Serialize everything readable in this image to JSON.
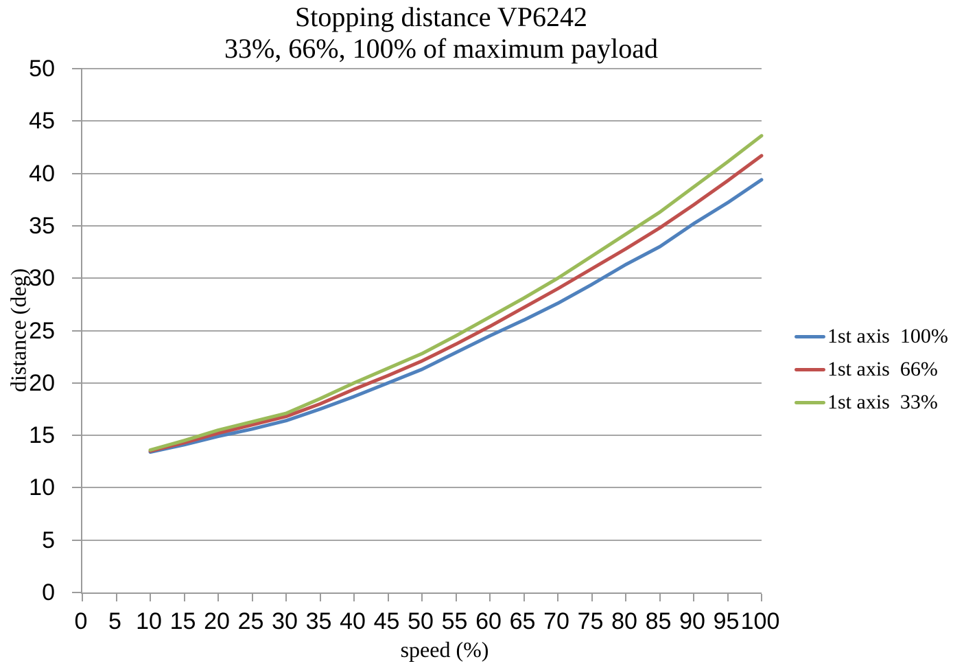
{
  "title": "Stopping distance VP6242",
  "subtitle": "33%, 66%, 100% of maximum payload",
  "axis": {
    "x_title": "speed (%)",
    "y_title": "distance (deg)"
  },
  "colors": {
    "series_blue": "#4F81BD",
    "series_red": "#C0504D",
    "series_green": "#9BBB59",
    "gridline": "#a6a6a6",
    "axis_line": "#9b9b9b"
  },
  "chart_data": {
    "type": "line",
    "title": "Stopping distance VP6242",
    "subtitle": "33%, 66%, 100% of maximum payload",
    "xlabel": "speed (%)",
    "ylabel": "distance (deg)",
    "xlim": [
      0,
      100
    ],
    "ylim": [
      0,
      50
    ],
    "xticks": [
      0,
      5,
      10,
      15,
      20,
      25,
      30,
      35,
      40,
      45,
      50,
      55,
      60,
      65,
      70,
      75,
      80,
      85,
      90,
      95,
      100
    ],
    "yticks": [
      0,
      5,
      10,
      15,
      20,
      25,
      30,
      35,
      40,
      45,
      50
    ],
    "grid": "horizontal-only",
    "legend_position": "right",
    "x": [
      10,
      15,
      20,
      25,
      30,
      35,
      40,
      45,
      50,
      55,
      60,
      65,
      70,
      75,
      80,
      85,
      90,
      95,
      100
    ],
    "series": [
      {
        "name": "1st axis  100%",
        "color": "#4F81BD",
        "values": [
          13.4,
          14.1,
          14.9,
          15.6,
          16.4,
          17.5,
          18.7,
          20.0,
          21.3,
          22.9,
          24.5,
          26.0,
          27.6,
          29.4,
          31.3,
          33.0,
          35.2,
          37.2,
          39.4
        ]
      },
      {
        "name": "1st axis  66%",
        "color": "#C0504D",
        "values": [
          13.5,
          14.3,
          15.2,
          16.0,
          16.8,
          18.0,
          19.4,
          20.7,
          22.1,
          23.7,
          25.4,
          27.2,
          29.0,
          30.9,
          32.8,
          34.8,
          37.0,
          39.3,
          41.7
        ]
      },
      {
        "name": "1st axis  33%",
        "color": "#9BBB59",
        "values": [
          13.6,
          14.5,
          15.5,
          16.3,
          17.1,
          18.5,
          20.0,
          21.4,
          22.8,
          24.5,
          26.3,
          28.1,
          30.0,
          32.1,
          34.2,
          36.3,
          38.7,
          41.1,
          43.6
        ]
      }
    ]
  }
}
